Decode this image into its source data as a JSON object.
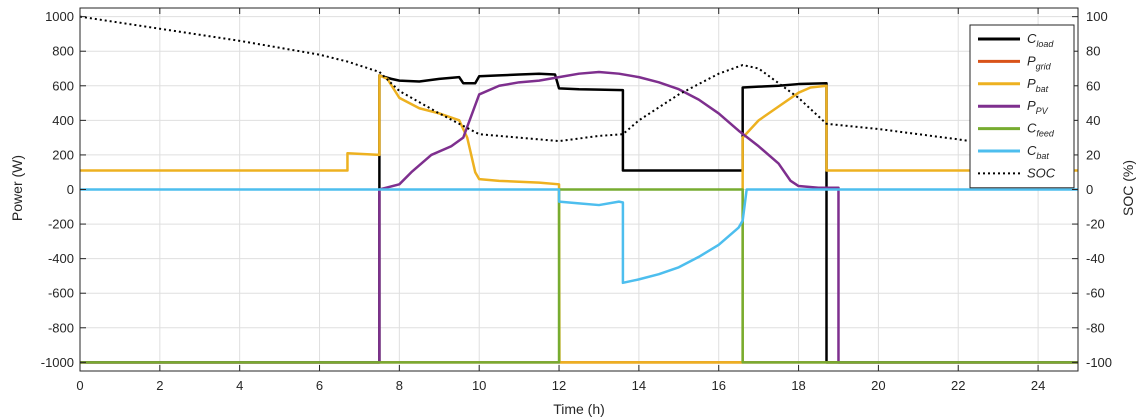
{
  "chart_data": {
    "type": "line",
    "xlabel": "Time (h)",
    "ylabel_left": "Power (W)",
    "ylabel_right": "SOC (%)",
    "xlim": [
      0,
      25
    ],
    "xticks": [
      0,
      2,
      4,
      6,
      8,
      10,
      12,
      14,
      16,
      18,
      20,
      22,
      24
    ],
    "ylim_left": [
      -1050,
      1050
    ],
    "yticks_left": [
      -1000,
      -800,
      -600,
      -400,
      -200,
      0,
      200,
      400,
      600,
      800,
      1000
    ],
    "ylim_right": [
      -105,
      105
    ],
    "yticks_right": [
      -100,
      -80,
      -60,
      -40,
      -20,
      0,
      20,
      40,
      60,
      80,
      100
    ],
    "grid": true,
    "legend_position": "top-right",
    "series": [
      {
        "name": "C",
        "sub": "load",
        "color": "#000000",
        "style": "solid",
        "axis": "left",
        "points": [
          [
            0,
            -1000
          ],
          [
            7.5,
            -1000
          ],
          [
            7.5,
            660
          ],
          [
            7.8,
            640
          ],
          [
            8,
            630
          ],
          [
            8.5,
            625
          ],
          [
            9,
            640
          ],
          [
            9.5,
            650
          ],
          [
            9.6,
            615
          ],
          [
            9.9,
            615
          ],
          [
            10,
            655
          ],
          [
            10.5,
            660
          ],
          [
            11,
            665
          ],
          [
            11.5,
            670
          ],
          [
            11.9,
            665
          ],
          [
            12,
            585
          ],
          [
            12.5,
            580
          ],
          [
            13,
            578
          ],
          [
            13.6,
            575
          ],
          [
            13.6,
            110
          ],
          [
            16.6,
            110
          ],
          [
            16.6,
            590
          ],
          [
            17,
            595
          ],
          [
            17.5,
            600
          ],
          [
            18,
            610
          ],
          [
            18.7,
            615
          ],
          [
            18.7,
            -1000
          ],
          [
            25,
            -1000
          ]
        ]
      },
      {
        "name": "P",
        "sub": "grid",
        "color": "#d95319",
        "style": "solid",
        "axis": "left",
        "points": [
          [
            0,
            -1000
          ],
          [
            25,
            -1000
          ]
        ]
      },
      {
        "name": "P",
        "sub": "bat",
        "color": "#edb120",
        "style": "solid",
        "axis": "left",
        "points": [
          [
            0,
            110
          ],
          [
            6.7,
            110
          ],
          [
            6.7,
            210
          ],
          [
            7.5,
            200
          ],
          [
            7.5,
            660
          ],
          [
            7.7,
            640
          ],
          [
            8,
            530
          ],
          [
            8.5,
            470
          ],
          [
            9,
            440
          ],
          [
            9.5,
            400
          ],
          [
            9.7,
            300
          ],
          [
            9.9,
            100
          ],
          [
            10,
            60
          ],
          [
            10.5,
            50
          ],
          [
            11,
            45
          ],
          [
            11.5,
            40
          ],
          [
            12,
            30
          ],
          [
            12.01,
            -1000
          ],
          [
            16.6,
            -1000
          ],
          [
            16.6,
            300
          ],
          [
            17,
            400
          ],
          [
            17.5,
            480
          ],
          [
            18,
            560
          ],
          [
            18.3,
            590
          ],
          [
            18.7,
            600
          ],
          [
            18.7,
            110
          ],
          [
            25,
            110
          ]
        ]
      },
      {
        "name": "P",
        "sub": "PV",
        "color": "#7e2f8e",
        "style": "solid",
        "axis": "left",
        "points": [
          [
            0,
            -1000
          ],
          [
            7.5,
            -1000
          ],
          [
            7.5,
            0
          ],
          [
            8,
            30
          ],
          [
            8.3,
            100
          ],
          [
            8.8,
            200
          ],
          [
            9.3,
            250
          ],
          [
            9.6,
            300
          ],
          [
            10,
            550
          ],
          [
            10.5,
            600
          ],
          [
            11,
            620
          ],
          [
            11.5,
            630
          ],
          [
            12,
            650
          ],
          [
            12.5,
            670
          ],
          [
            13,
            680
          ],
          [
            13.5,
            670
          ],
          [
            14,
            650
          ],
          [
            14.5,
            620
          ],
          [
            15,
            580
          ],
          [
            15.5,
            520
          ],
          [
            16,
            440
          ],
          [
            16.5,
            340
          ],
          [
            17,
            250
          ],
          [
            17.5,
            150
          ],
          [
            17.8,
            50
          ],
          [
            18,
            20
          ],
          [
            18.5,
            10
          ],
          [
            19,
            10
          ],
          [
            19,
            -1000
          ],
          [
            25,
            -1000
          ]
        ]
      },
      {
        "name": "C",
        "sub": "feed",
        "color": "#77ac30",
        "style": "solid",
        "axis": "left",
        "points": [
          [
            0,
            -1000
          ],
          [
            12,
            -1000
          ],
          [
            12,
            0
          ],
          [
            16.6,
            0
          ],
          [
            16.6,
            -1000
          ],
          [
            25,
            -1000
          ]
        ]
      },
      {
        "name": "C",
        "sub": "bat",
        "color": "#4dbeee",
        "style": "solid",
        "axis": "left",
        "points": [
          [
            0,
            0
          ],
          [
            12,
            0
          ],
          [
            12,
            -70
          ],
          [
            12.5,
            -80
          ],
          [
            13,
            -90
          ],
          [
            13.5,
            -70
          ],
          [
            13.6,
            -75
          ],
          [
            13.6,
            -540
          ],
          [
            14,
            -520
          ],
          [
            14.5,
            -490
          ],
          [
            15,
            -450
          ],
          [
            15.5,
            -390
          ],
          [
            16,
            -320
          ],
          [
            16.5,
            -220
          ],
          [
            16.6,
            -180
          ],
          [
            16.7,
            0
          ],
          [
            25,
            0
          ]
        ]
      },
      {
        "name": "SOC",
        "sub": "",
        "color": "#000000",
        "style": "dotted",
        "axis": "right",
        "points": [
          [
            0,
            100
          ],
          [
            2,
            93
          ],
          [
            4,
            86
          ],
          [
            6,
            78
          ],
          [
            6.7,
            74
          ],
          [
            7.5,
            68
          ],
          [
            8,
            57
          ],
          [
            9,
            44
          ],
          [
            10,
            32
          ],
          [
            11,
            30
          ],
          [
            12,
            28
          ],
          [
            13,
            31
          ],
          [
            13.6,
            32
          ],
          [
            14,
            40
          ],
          [
            15,
            55
          ],
          [
            16,
            67
          ],
          [
            16.6,
            72
          ],
          [
            17,
            70
          ],
          [
            18,
            53
          ],
          [
            18.7,
            38
          ],
          [
            20,
            35
          ],
          [
            22,
            29
          ],
          [
            23.5,
            24
          ]
        ]
      }
    ]
  }
}
